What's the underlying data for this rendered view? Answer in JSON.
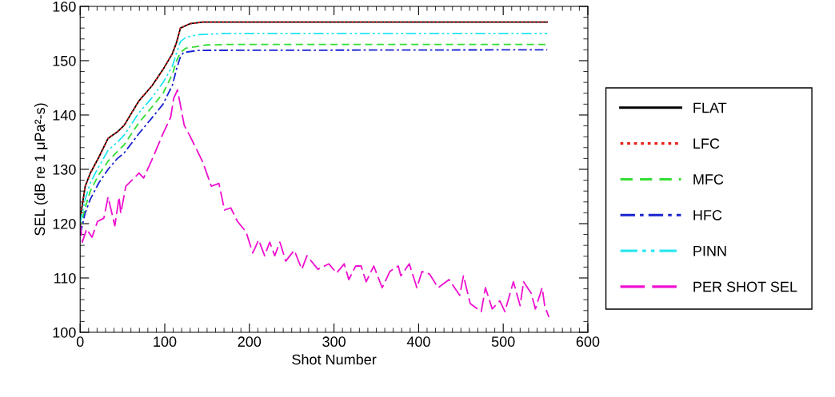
{
  "chart_data": {
    "type": "line",
    "xlabel": "Shot Number",
    "ylabel": "SEL (dB re 1 μPa²-s)",
    "xlim": [
      0,
      600
    ],
    "xticks": [
      0,
      100,
      200,
      300,
      400,
      500,
      600
    ],
    "ylim": [
      100,
      160
    ],
    "yticks": [
      100,
      110,
      120,
      130,
      140,
      150,
      160
    ],
    "grid": false,
    "legend": "right",
    "marker": "none",
    "series": [
      {
        "name": "FLAT",
        "color": "#000000",
        "line_style": "solid",
        "x": [
          0,
          6,
          12,
          22,
          33,
          44,
          52,
          69,
          85,
          98,
          109,
          114,
          118.5,
          129.6,
          145,
          552
        ],
        "values": [
          121,
          126.9,
          129.3,
          132.2,
          135.7,
          136.9,
          138.1,
          142.5,
          145.4,
          148.4,
          151.3,
          153.4,
          156.0,
          156.8,
          157.1,
          157.1
        ]
      },
      {
        "name": "LFC",
        "color": "#e8201c",
        "line_style": "dotted",
        "x": [
          0,
          6,
          12,
          22,
          33,
          44,
          52,
          69,
          85,
          98,
          109,
          114,
          118.5,
          129.6,
          145,
          552
        ],
        "values": [
          121,
          126.9,
          129.3,
          132.2,
          135.7,
          136.9,
          138.1,
          142.5,
          145.4,
          148.4,
          151.3,
          153.4,
          156.0,
          156.8,
          157.1,
          157.1
        ]
      },
      {
        "name": "MFC",
        "color": "#33dd33",
        "line_style": "dashed",
        "x": [
          0,
          6,
          12,
          22,
          33,
          44,
          52,
          69,
          85,
          98,
          109,
          114,
          118.5,
          125,
          150,
          180,
          552
        ],
        "values": [
          119,
          123,
          126,
          129,
          131.5,
          133.3,
          134.5,
          138.5,
          141.5,
          144,
          147.5,
          150,
          151.5,
          152.3,
          152.9,
          153.0,
          153.0
        ]
      },
      {
        "name": "HFC",
        "color": "#1a24d0",
        "line_style": "dashdot",
        "x": [
          0,
          6,
          12,
          22,
          33,
          44,
          52,
          69,
          85,
          98,
          109,
          114,
          118,
          122,
          140,
          552
        ],
        "values": [
          118,
          122,
          124.5,
          127.5,
          130,
          132,
          133,
          136.5,
          139.5,
          142,
          145.5,
          148.5,
          150.5,
          151.5,
          151.9,
          152.0
        ]
      },
      {
        "name": "PINN",
        "color": "#22e6f0",
        "line_style": "dashdotdot",
        "x": [
          0,
          6,
          12,
          22,
          33,
          44,
          52,
          69,
          85,
          98,
          109,
          114,
          118.5,
          125,
          140,
          170,
          552
        ],
        "values": [
          120,
          124.5,
          127.5,
          130.5,
          133.5,
          135.0,
          136.3,
          140.3,
          143.2,
          146,
          149,
          151.5,
          153.5,
          154.3,
          154.8,
          155.0,
          155.0
        ]
      },
      {
        "name": "PER SHOT SEL",
        "color": "#ee10d0",
        "line_style": "longdash",
        "x": [
          0,
          2.5,
          7.7,
          14,
          20.5,
          28,
          33,
          41,
          46,
          48,
          54,
          69.5,
          75,
          85,
          98,
          107,
          110.6,
          115,
          120,
          123,
          129.6,
          139,
          145,
          155,
          164,
          170.6,
          178,
          186,
          196,
          204,
          211,
          218,
          224,
          230,
          236,
          243,
          253,
          262,
          268,
          281,
          294,
          303,
          312,
          317.5,
          325.6,
          332,
          338,
          347,
          357,
          366,
          376,
          379,
          389,
          398,
          404,
          413,
          423,
          436,
          448.6,
          453,
          461,
          474,
          479,
          487,
          496,
          502,
          512,
          520,
          524,
          533,
          538,
          546,
          549,
          554
        ],
        "values": [
          120.4,
          116.6,
          119,
          117.5,
          120.4,
          121,
          124.9,
          119.6,
          124.9,
          121.9,
          126.9,
          129.3,
          128.4,
          131.8,
          136.6,
          139.6,
          143.1,
          144.6,
          140.6,
          138.1,
          136.2,
          133.2,
          131.3,
          126.9,
          127.4,
          122.5,
          122.9,
          120.4,
          118.5,
          114.6,
          117,
          114.1,
          116.6,
          114.1,
          116.6,
          113.1,
          115.1,
          111.6,
          114.1,
          111.6,
          112.6,
          110.9,
          112.6,
          109.7,
          112.2,
          112.2,
          109.3,
          112.2,
          108.2,
          111.2,
          112.2,
          110.4,
          112.6,
          108.2,
          111.2,
          110.7,
          108.2,
          109.7,
          106.8,
          110.4,
          105.3,
          103.8,
          108.2,
          104.3,
          105.8,
          103.8,
          109.3,
          104.9,
          109.3,
          107.2,
          104.3,
          108.2,
          104.9,
          102.8
        ]
      }
    ]
  }
}
